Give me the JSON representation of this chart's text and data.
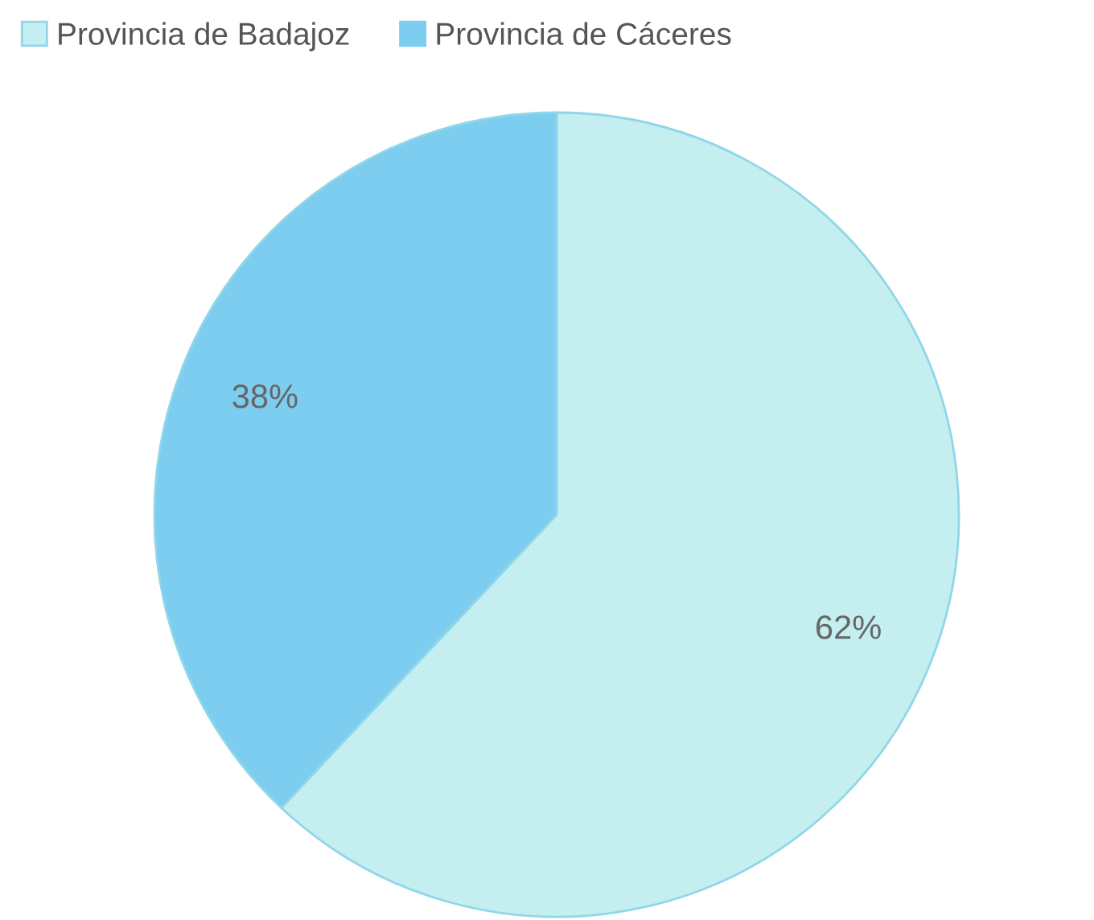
{
  "chart_data": {
    "type": "pie",
    "categories": [
      "Provincia de Badajoz",
      "Provincia de Cáceres"
    ],
    "values": [
      62,
      38
    ],
    "colors": [
      "#c5eef0",
      "#7dcdf0"
    ],
    "value_labels": [
      "62%",
      "38%"
    ],
    "legend": "top left"
  }
}
